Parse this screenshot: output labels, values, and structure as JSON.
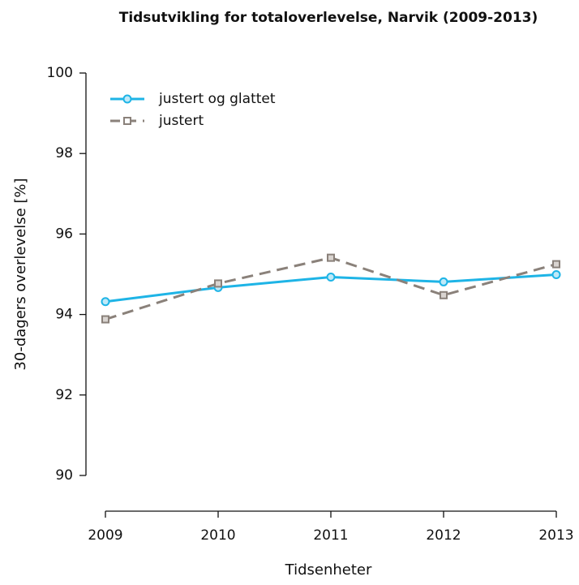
{
  "chart_data": {
    "type": "line",
    "title": "Tidsutvikling for totaloverlevelse, Narvik (2009-2013)",
    "xlabel": "Tidsenheter",
    "ylabel": "30-dagers overlevelse [%]",
    "x": [
      2009,
      2010,
      2011,
      2012,
      2013
    ],
    "xlim": [
      2009,
      2013
    ],
    "xticks": [
      2009,
      2010,
      2011,
      2012,
      2013
    ],
    "ylim": [
      90,
      100
    ],
    "yticks": [
      90,
      92,
      94,
      96,
      98,
      100
    ],
    "legend": "top-left",
    "series": [
      {
        "name": "justert og glattet",
        "color": "#1eb4e6",
        "marker": "circle",
        "dash": "solid",
        "values": [
          94.32,
          94.67,
          94.93,
          94.81,
          94.99
        ]
      },
      {
        "name": "justert",
        "color": "#8a817a",
        "marker": "square",
        "dash": "dashed",
        "values": [
          93.88,
          94.77,
          95.41,
          94.48,
          95.25
        ]
      }
    ]
  }
}
